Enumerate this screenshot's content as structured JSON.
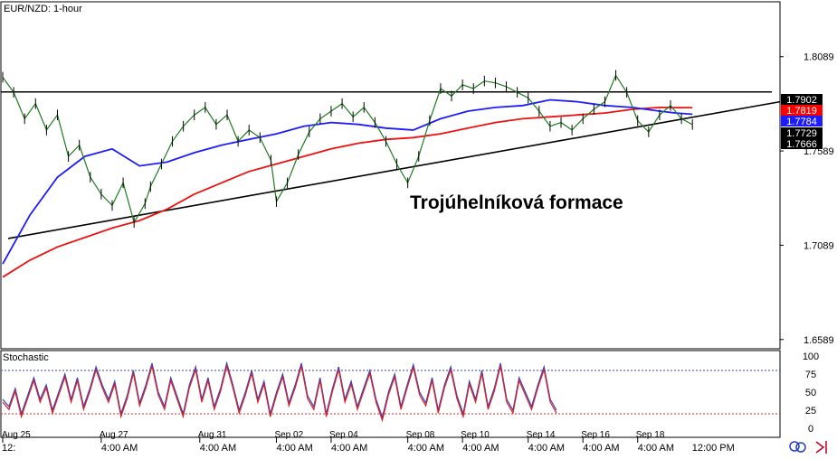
{
  "chart_data": {
    "type": "line",
    "title": "EUR/NZD: 1-hour",
    "annotation": "Trojúhelníková formace",
    "price_axis": {
      "ylim": [
        1.654,
        1.838
      ],
      "ticks": [
        "1.8089",
        "1.7589",
        "1.7089",
        "1.6589"
      ]
    },
    "price_labels": [
      {
        "value": "1.7902",
        "bg": "#000000",
        "fg": "#ffffff"
      },
      {
        "value": "1.7819",
        "bg": "#ff0000",
        "fg": "#ffffff"
      },
      {
        "value": "1.7784",
        "bg": "#1c1cff",
        "fg": "#ffffff"
      },
      {
        "value": "1.7729",
        "bg": "#000000",
        "fg": "#ffffff"
      },
      {
        "value": "1.7666",
        "bg": "#000000",
        "fg": "#ffffff"
      }
    ],
    "date_labels": [
      "Aug 25",
      "Aug 27",
      "Aug 31",
      "Sep 02",
      "Sep 04",
      "Sep 08",
      "Sep 10",
      "Sep 14",
      "Sep 16",
      "Sep 18"
    ],
    "time_labels": [
      "12:",
      "4:00 AM",
      "4:00 AM",
      "4:00 AM",
      "4:00 AM",
      "4:00 AM",
      "4:00 AM",
      "4:00 AM",
      "4:00 AM",
      "4:00 AM",
      "12:00 PM"
    ],
    "date_label_index": [
      0,
      1.8,
      3.6,
      5.0,
      6.0,
      7.4,
      8.4,
      9.6,
      10.6,
      11.6
    ],
    "x_range": [
      0,
      14.2
    ],
    "resistance": {
      "value": 1.7902
    },
    "support": {
      "points": [
        [
          0.1,
          1.7125
        ],
        [
          14.2,
          1.785
        ]
      ]
    },
    "ema_red": {
      "x": [
        0,
        0.5,
        1,
        1.5,
        2,
        2.5,
        3,
        3.5,
        4,
        4.5,
        5,
        5.5,
        6,
        6.5,
        7,
        7.5,
        8,
        8.5,
        9,
        9.5,
        10,
        10.5,
        11,
        11.5,
        12,
        12.3,
        12.6
      ],
      "values": [
        1.692,
        1.701,
        1.708,
        1.713,
        1.718,
        1.722,
        1.728,
        1.736,
        1.742,
        1.748,
        1.752,
        1.756,
        1.76,
        1.763,
        1.765,
        1.766,
        1.768,
        1.771,
        1.774,
        1.776,
        1.777,
        1.778,
        1.779,
        1.781,
        1.782,
        1.7819,
        1.7819
      ]
    },
    "ema_blue": {
      "x": [
        0,
        0.5,
        1,
        1.5,
        2,
        2.5,
        3,
        3.5,
        4,
        4.5,
        5,
        5.5,
        6,
        6.5,
        7,
        7.5,
        8,
        8.5,
        9,
        9.5,
        10,
        10.5,
        11,
        11.5,
        12,
        12.3,
        12.6
      ],
      "values": [
        1.699,
        1.725,
        1.745,
        1.756,
        1.76,
        1.751,
        1.753,
        1.758,
        1.762,
        1.765,
        1.768,
        1.772,
        1.774,
        1.773,
        1.771,
        1.77,
        1.776,
        1.78,
        1.782,
        1.783,
        1.786,
        1.785,
        1.783,
        1.782,
        1.78,
        1.779,
        1.7784
      ]
    },
    "price": {
      "x": [
        0,
        0.2,
        0.4,
        0.6,
        0.8,
        1.0,
        1.2,
        1.4,
        1.6,
        1.8,
        2.0,
        2.2,
        2.4,
        2.6,
        2.7,
        2.9,
        3.1,
        3.3,
        3.5,
        3.7,
        3.9,
        4.1,
        4.3,
        4.5,
        4.7,
        4.9,
        5.0,
        5.2,
        5.4,
        5.6,
        5.8,
        6.0,
        6.2,
        6.4,
        6.6,
        6.8,
        7.0,
        7.2,
        7.4,
        7.6,
        7.8,
        8.0,
        8.2,
        8.4,
        8.6,
        8.8,
        9.0,
        9.2,
        9.4,
        9.6,
        9.8,
        10.0,
        10.2,
        10.4,
        10.6,
        10.8,
        11.0,
        11.2,
        11.4,
        11.6,
        11.8,
        12.0,
        12.2,
        12.4,
        12.6
      ],
      "values": [
        1.798,
        1.79,
        1.776,
        1.784,
        1.77,
        1.778,
        1.756,
        1.762,
        1.745,
        1.736,
        1.73,
        1.742,
        1.721,
        1.731,
        1.74,
        1.752,
        1.764,
        1.772,
        1.778,
        1.782,
        1.773,
        1.778,
        1.764,
        1.77,
        1.766,
        1.754,
        1.732,
        1.742,
        1.757,
        1.769,
        1.776,
        1.78,
        1.784,
        1.777,
        1.782,
        1.774,
        1.764,
        1.752,
        1.742,
        1.756,
        1.775,
        1.792,
        1.788,
        1.794,
        1.792,
        1.796,
        1.795,
        1.793,
        1.79,
        1.787,
        1.78,
        1.772,
        1.774,
        1.77,
        1.776,
        1.781,
        1.785,
        1.799,
        1.79,
        1.775,
        1.769,
        1.778,
        1.783,
        1.776,
        1.7729
      ]
    },
    "stochastic": {
      "label": "Stochastic",
      "ylim": [
        0,
        100
      ],
      "ticks": [
        "100",
        "75",
        "50",
        "25",
        "0"
      ],
      "levels": [
        80,
        20
      ],
      "values": [
        40,
        30,
        55,
        20,
        45,
        70,
        40,
        60,
        25,
        50,
        75,
        40,
        70,
        30,
        55,
        85,
        60,
        40,
        65,
        20,
        45,
        80,
        35,
        60,
        90,
        50,
        30,
        70,
        45,
        20,
        60,
        85,
        40,
        70,
        30,
        55,
        90,
        60,
        25,
        50,
        80,
        40,
        65,
        20,
        50,
        75,
        35,
        60,
        90,
        45,
        30,
        70,
        20,
        55,
        85,
        40,
        65,
        30,
        55,
        80,
        40,
        15,
        50,
        75,
        30,
        60,
        88,
        50,
        35,
        70,
        25,
        60,
        85,
        45,
        20,
        65,
        40,
        80,
        30,
        55,
        90,
        40,
        25,
        70,
        50,
        30,
        60,
        85,
        40,
        25
      ]
    }
  }
}
